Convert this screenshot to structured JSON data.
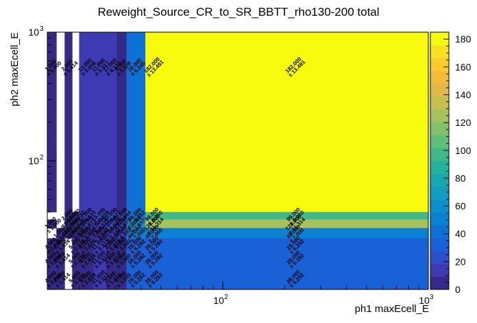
{
  "chart_data": {
    "type": "heatmap",
    "title": "Reweight_Source_CR_to_SR_BBTT_rho130-200 total",
    "xlabel": "ph1 maxEcell_E",
    "ylabel": "ph2 maxEcell_E",
    "x_scale": "log",
    "y_scale": "log",
    "xlim": [
      14,
      1000
    ],
    "ylim": [
      10,
      1000
    ],
    "x_ticks": [
      {
        "v": 100,
        "base": "10",
        "exp": "2"
      },
      {
        "v": 1000,
        "base": "10",
        "exp": "3"
      }
    ],
    "y_ticks": [
      {
        "v": 100,
        "base": "10",
        "exp": "2"
      },
      {
        "v": 1000,
        "base": "10",
        "exp": "3"
      }
    ],
    "colorbar": {
      "min": 0,
      "max": 185,
      "ticks": [
        0,
        20,
        40,
        60,
        80,
        100,
        120,
        140,
        160,
        180
      ]
    },
    "x_edges": [
      14,
      15.5,
      17,
      18.5,
      20,
      23.5,
      27,
      30.5,
      34,
      42,
      50,
      1000
    ],
    "y_edges": [
      10,
      15,
      20,
      25,
      30,
      35,
      40,
      1000
    ],
    "cells": [
      {
        "xi": 0,
        "yi": 6,
        "v": 1,
        "t": "1.000",
        "e": "± 1.000"
      },
      {
        "xi": 2,
        "yi": 6,
        "v": 2,
        "t": "2.000",
        "e": "± 1.414"
      },
      {
        "xi": 4,
        "yi": 6,
        "v": 13,
        "t": "13.000",
        "e": "± 3.606"
      },
      {
        "xi": 5,
        "yi": 6,
        "v": 11,
        "t": "11.000",
        "e": "± 3.317"
      },
      {
        "xi": 6,
        "yi": 6,
        "v": 17,
        "t": "17.000",
        "e": "± 4.123"
      },
      {
        "xi": 7,
        "yi": 6,
        "v": 8,
        "t": "8.000",
        "e": "± 2.828"
      },
      {
        "xi": 8,
        "yi": 6,
        "v": 39,
        "t": "39.000",
        "e": "± 6.245"
      },
      {
        "xi": 9,
        "yi": 6,
        "v": 182,
        "t": "182.000",
        "e": "± 13.491"
      },
      {
        "xi": 10,
        "yi": 6,
        "v": 182,
        "t": "182.000",
        "e": "± 13.491"
      },
      {
        "xi": 2,
        "yi": 5,
        "v": 2,
        "t": "2.000",
        "e": "± 1.414"
      },
      {
        "xi": 3,
        "yi": 5,
        "v": 3,
        "t": "3.000",
        "e": "± 1.732"
      },
      {
        "xi": 4,
        "yi": 5,
        "v": 17,
        "t": "17.000",
        "e": "± 4.123"
      },
      {
        "xi": 5,
        "yi": 5,
        "v": 19,
        "t": "19.000",
        "e": "± 4.359"
      },
      {
        "xi": 6,
        "yi": 5,
        "v": 20,
        "t": "20.000",
        "e": "± 4.472"
      },
      {
        "xi": 7,
        "yi": 5,
        "v": 12,
        "t": "12.000",
        "e": "± 3.464"
      },
      {
        "xi": 8,
        "yi": 5,
        "v": 46,
        "t": "46.000",
        "e": "± 6.782"
      },
      {
        "xi": 9,
        "yi": 5,
        "v": 99,
        "t": "99.000",
        "e": "± 9.950"
      },
      {
        "xi": 10,
        "yi": 5,
        "v": 99,
        "t": "99.000",
        "e": "± 9.950"
      },
      {
        "xi": 0,
        "yi": 4,
        "v": 1,
        "t": "1.000",
        "e": "± 1.000"
      },
      {
        "xi": 2,
        "yi": 4,
        "v": 3,
        "t": "3.000",
        "e": "± 1.732"
      },
      {
        "xi": 3,
        "yi": 4,
        "v": 7,
        "t": "7.000",
        "e": "± 2.646"
      },
      {
        "xi": 4,
        "yi": 4,
        "v": 15,
        "t": "15.000",
        "e": "± 3.873"
      },
      {
        "xi": 5,
        "yi": 4,
        "v": 17,
        "t": "17.000",
        "e": "± 4.123"
      },
      {
        "xi": 6,
        "yi": 4,
        "v": 21,
        "t": "21.000",
        "e": "± 4.583"
      },
      {
        "xi": 7,
        "yi": 4,
        "v": 15,
        "t": "15.000",
        "e": "± 3.873"
      },
      {
        "xi": 8,
        "yi": 4,
        "v": 63,
        "t": "63.000",
        "e": "± 7.937"
      },
      {
        "xi": 9,
        "yi": 4,
        "v": 128,
        "t": "128.000",
        "e": "± 11.314"
      },
      {
        "xi": 10,
        "yi": 4,
        "v": 128,
        "t": "128.000",
        "e": "± 11.314"
      },
      {
        "xi": 1,
        "yi": 3,
        "v": 1,
        "t": "1.000",
        "e": "± 1.000"
      },
      {
        "xi": 2,
        "yi": 3,
        "v": 4,
        "t": "4.000",
        "e": "± 2.000"
      },
      {
        "xi": 3,
        "yi": 3,
        "v": 8,
        "t": "8.000",
        "e": "± 2.828"
      },
      {
        "xi": 4,
        "yi": 3,
        "v": 9,
        "t": "9.000",
        "e": "± 3.000"
      },
      {
        "xi": 5,
        "yi": 3,
        "v": 7,
        "t": "7.000",
        "e": "± 2.646"
      },
      {
        "xi": 6,
        "yi": 3,
        "v": 11,
        "t": "11.000",
        "e": "± 3.317"
      },
      {
        "xi": 7,
        "yi": 3,
        "v": 18,
        "t": "18.000",
        "e": "± 4.243"
      },
      {
        "xi": 8,
        "yi": 3,
        "v": 49,
        "t": "49.000",
        "e": "± 7.000"
      },
      {
        "xi": 9,
        "yi": 3,
        "v": 49,
        "t": "49.000",
        "e": "± 7.000"
      },
      {
        "xi": 10,
        "yi": 3,
        "v": 49,
        "t": "49.000",
        "e": "± 7.000"
      },
      {
        "xi": 0,
        "yi": 2,
        "v": 4,
        "t": "4.000",
        "e": "± 2.000"
      },
      {
        "xi": 1,
        "yi": 2,
        "v": 2,
        "t": "2.000",
        "e": "± 1.414"
      },
      {
        "xi": 3,
        "yi": 2,
        "v": 5,
        "t": "5.000",
        "e": "± 2.236"
      },
      {
        "xi": 4,
        "yi": 2,
        "v": 8,
        "t": "8.000",
        "e": "± 2.828"
      },
      {
        "xi": 5,
        "yi": 2,
        "v": 11,
        "t": "11.000",
        "e": "± 3.317"
      },
      {
        "xi": 6,
        "yi": 2,
        "v": 2,
        "t": "2.000",
        "e": "± 1.414"
      },
      {
        "xi": 7,
        "yi": 2,
        "v": 9,
        "t": "9.000",
        "e": "± 3.000"
      },
      {
        "xi": 8,
        "yi": 2,
        "v": 28,
        "t": "28.000",
        "e": "± 5.292"
      },
      {
        "xi": 9,
        "yi": 2,
        "v": 28,
        "t": "28.000",
        "e": "± 5.292"
      },
      {
        "xi": 10,
        "yi": 2,
        "v": 28,
        "t": "28.000",
        "e": "± 5.292"
      },
      {
        "xi": 0,
        "yi": 1,
        "v": 4,
        "t": "4.000",
        "e": "± 2.000"
      },
      {
        "xi": 1,
        "yi": 1,
        "v": 2,
        "t": "2.000",
        "e": "± 1.414"
      },
      {
        "xi": 3,
        "yi": 1,
        "v": 5,
        "t": "5.000",
        "e": "± 2.236"
      },
      {
        "xi": 4,
        "yi": 1,
        "v": 8,
        "t": "8.000",
        "e": "± 2.828"
      },
      {
        "xi": 5,
        "yi": 1,
        "v": 11,
        "t": "11.000",
        "e": "± 3.317"
      },
      {
        "xi": 6,
        "yi": 1,
        "v": 2,
        "t": "2.000",
        "e": "± 1.414"
      },
      {
        "xi": 7,
        "yi": 1,
        "v": 9,
        "t": "9.000",
        "e": "± 3.000"
      },
      {
        "xi": 8,
        "yi": 1,
        "v": 28,
        "t": "28.000",
        "e": "± 5.292"
      },
      {
        "xi": 9,
        "yi": 1,
        "v": 28,
        "t": "28.000",
        "e": "± 5.292"
      },
      {
        "xi": 10,
        "yi": 1,
        "v": 28,
        "t": "28.000",
        "e": "± 5.292"
      },
      {
        "xi": 0,
        "yi": 0,
        "v": 4,
        "t": "4.000",
        "e": "± 2.000"
      },
      {
        "xi": 1,
        "yi": 0,
        "v": 2,
        "t": "2.000",
        "e": "± 1.414"
      },
      {
        "xi": 3,
        "yi": 0,
        "v": 5,
        "t": "5.000",
        "e": "± 2.236"
      },
      {
        "xi": 4,
        "yi": 0,
        "v": 8,
        "t": "8.000",
        "e": "± 2.828"
      },
      {
        "xi": 5,
        "yi": 0,
        "v": 11,
        "t": "11.000",
        "e": "± 3.317"
      },
      {
        "xi": 6,
        "yi": 0,
        "v": 2,
        "t": "2.000",
        "e": "± 1.414"
      },
      {
        "xi": 7,
        "yi": 0,
        "v": 9,
        "t": "9.000",
        "e": "± 3.000"
      },
      {
        "xi": 8,
        "yi": 0,
        "v": 28,
        "t": "28.000",
        "e": "± 5.292"
      },
      {
        "xi": 9,
        "yi": 0,
        "v": 28,
        "t": "28.000",
        "e": "± 5.292"
      },
      {
        "xi": 10,
        "yi": 0,
        "v": 28,
        "t": "28.000",
        "e": "± 5.292"
      }
    ],
    "palette": [
      "#352a87",
      "#3d3ab4",
      "#2d50c8",
      "#1a60d6",
      "#0e71d6",
      "#0a81d3",
      "#0c90cc",
      "#119cc0",
      "#16a8ac",
      "#25b29b",
      "#3fb98a",
      "#5fbf78",
      "#83c26a",
      "#a7c25c",
      "#c6be4e",
      "#e0b946",
      "#f4bc3a",
      "#fbcb2c",
      "#f8e11e",
      "#f9fb0e"
    ],
    "grid": false,
    "legend": "colorbar-right"
  }
}
